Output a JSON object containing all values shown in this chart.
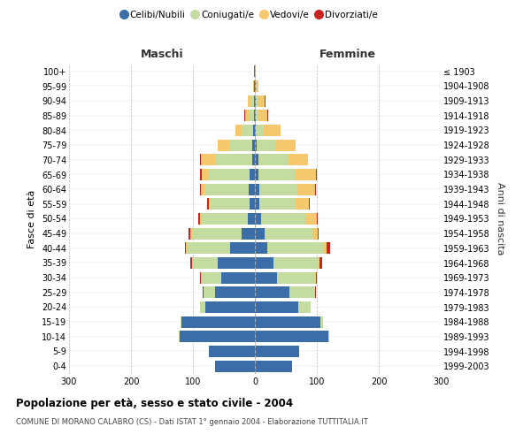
{
  "age_groups": [
    "100+",
    "95-99",
    "90-94",
    "85-89",
    "80-84",
    "75-79",
    "70-74",
    "65-69",
    "60-64",
    "55-59",
    "50-54",
    "45-49",
    "40-44",
    "35-39",
    "30-34",
    "25-29",
    "20-24",
    "15-19",
    "10-14",
    "5-9",
    "0-4"
  ],
  "birth_years": [
    "≤ 1903",
    "1904-1908",
    "1909-1913",
    "1914-1918",
    "1919-1923",
    "1924-1928",
    "1929-1933",
    "1934-1938",
    "1939-1943",
    "1944-1948",
    "1949-1953",
    "1954-1958",
    "1959-1963",
    "1964-1968",
    "1969-1973",
    "1974-1978",
    "1979-1983",
    "1984-1988",
    "1989-1993",
    "1994-1998",
    "1999-2003"
  ],
  "male": {
    "celibi": [
      1,
      1,
      2,
      2,
      3,
      4,
      5,
      8,
      10,
      8,
      12,
      22,
      40,
      60,
      55,
      65,
      80,
      118,
      122,
      75,
      65
    ],
    "coniugati": [
      0,
      1,
      4,
      6,
      18,
      38,
      60,
      68,
      72,
      65,
      75,
      80,
      70,
      42,
      32,
      18,
      8,
      2,
      1,
      0,
      0
    ],
    "vedovi": [
      0,
      1,
      5,
      8,
      10,
      18,
      22,
      10,
      5,
      2,
      2,
      3,
      1,
      0,
      0,
      0,
      0,
      0,
      0,
      0,
      0
    ],
    "divorziati": [
      0,
      0,
      0,
      1,
      1,
      0,
      2,
      2,
      2,
      2,
      2,
      2,
      2,
      2,
      2,
      1,
      1,
      0,
      0,
      0,
      0
    ]
  },
  "female": {
    "nubili": [
      0,
      1,
      2,
      1,
      2,
      3,
      5,
      6,
      7,
      7,
      10,
      15,
      20,
      30,
      35,
      55,
      70,
      105,
      118,
      72,
      60
    ],
    "coniugate": [
      0,
      1,
      2,
      4,
      12,
      30,
      48,
      58,
      62,
      58,
      72,
      78,
      92,
      72,
      62,
      42,
      20,
      5,
      2,
      0,
      0
    ],
    "vedove": [
      1,
      3,
      12,
      15,
      28,
      32,
      32,
      35,
      28,
      22,
      18,
      8,
      4,
      2,
      1,
      0,
      0,
      0,
      0,
      0,
      0
    ],
    "divorziate": [
      0,
      0,
      1,
      1,
      0,
      0,
      0,
      1,
      1,
      1,
      2,
      2,
      5,
      5,
      2,
      2,
      0,
      0,
      0,
      0,
      0
    ]
  },
  "colors": {
    "celibi": "#3B6EA8",
    "coniugati": "#C5DCA0",
    "vedovi": "#F5C86E",
    "divorziati": "#CC2222"
  },
  "legend_labels": [
    "Celibi/Nubili",
    "Coniugati/e",
    "Vedovi/e",
    "Divorziati/e"
  ],
  "xlim": 300,
  "title": "Popolazione per età, sesso e stato civile - 2004",
  "subtitle": "COMUNE DI MORANO CALABRO (CS) - Dati ISTAT 1° gennaio 2004 - Elaborazione TUTTITALIA.IT",
  "ylabel_left": "Fasce di età",
  "ylabel_right": "Anni di nascita",
  "xlabel_left": "Maschi",
  "xlabel_right": "Femmine",
  "bg_color": "#FFFFFF",
  "grid_color": "#CCCCCC"
}
